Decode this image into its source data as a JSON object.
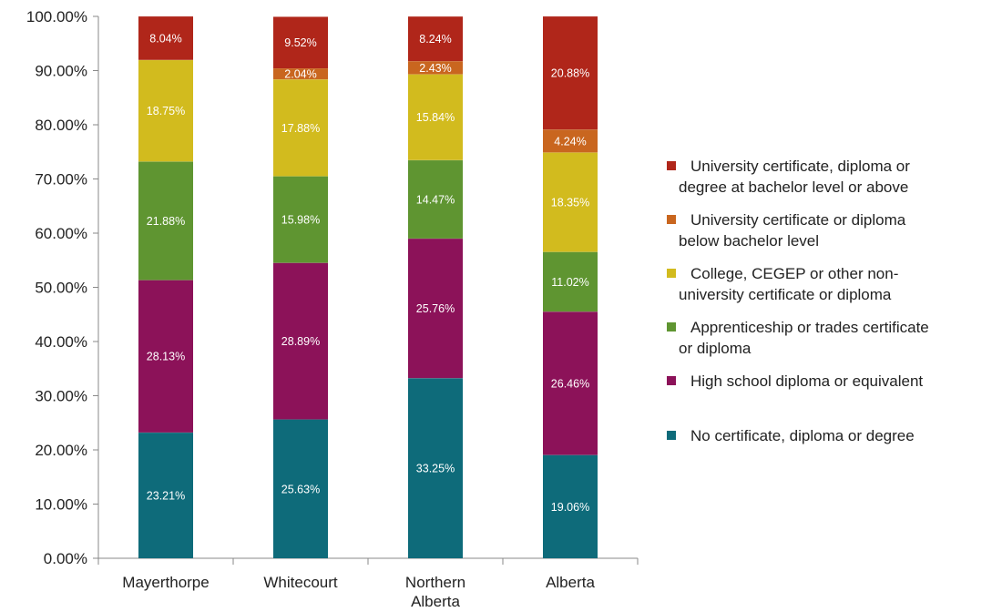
{
  "chart_data": {
    "type": "bar",
    "stacked": true,
    "categories": [
      [
        "Mayerthorpe"
      ],
      [
        "Whitecourt"
      ],
      [
        "Northern",
        "Alberta"
      ],
      [
        "Alberta"
      ]
    ],
    "series": [
      {
        "name": "No certificate, diploma or degree",
        "color": "#0e6b7a",
        "values": [
          23.21,
          25.63,
          33.25,
          19.06
        ],
        "labels": [
          "23.21%",
          "25.63%",
          "33.25%",
          "19.06%"
        ]
      },
      {
        "name": "High school diploma or equivalent",
        "color": "#8c1259",
        "values": [
          28.13,
          28.89,
          25.76,
          26.46
        ],
        "labels": [
          "28.13%",
          "28.89%",
          "25.76%",
          "26.46%"
        ]
      },
      {
        "name": "Apprenticeship or trades certificate or diploma",
        "color": "#5f9531",
        "values": [
          21.88,
          15.98,
          14.47,
          11.02
        ],
        "labels": [
          "21.88%",
          "15.98%",
          "14.47%",
          "11.02%"
        ]
      },
      {
        "name": "College, CEGEP or other non-university certificate or diploma",
        "color": "#d2bb1e",
        "values": [
          18.75,
          17.88,
          15.84,
          18.35
        ],
        "labels": [
          "18.75%",
          "17.88%",
          "15.84%",
          "18.35%"
        ]
      },
      {
        "name": "University certificate or diploma below bachelor level",
        "color": "#c9661f",
        "values": [
          0,
          2.04,
          2.43,
          4.24
        ],
        "labels": [
          "",
          "2.04%",
          "2.43%",
          "4.24%"
        ]
      },
      {
        "name": "University certificate, diploma or degree at bachelor level or above",
        "color": "#b0261a",
        "values": [
          8.04,
          9.52,
          8.24,
          20.88
        ],
        "labels": [
          "8.04%",
          "9.52%",
          "8.24%",
          "20.88%"
        ]
      }
    ],
    "legend": {
      "position": "right",
      "entries": [
        {
          "lines": [
            "University certificate, diploma or",
            "degree at bachelor level or above"
          ],
          "color": "#b0261a"
        },
        {
          "lines": [
            "University certificate or diploma",
            "below bachelor level"
          ],
          "color": "#c9661f"
        },
        {
          "lines": [
            "College, CEGEP or other non-",
            "university certificate or diploma"
          ],
          "color": "#d2bb1e"
        },
        {
          "lines": [
            "Apprenticeship or trades certificate",
            "or diploma"
          ],
          "color": "#5f9531"
        },
        {
          "lines": [
            "High school diploma or equivalent"
          ],
          "color": "#8c1259"
        },
        {
          "lines": [
            "No certificate, diploma or degree"
          ],
          "color": "#0e6b7a"
        }
      ]
    },
    "y_ticks": [
      "0.00%",
      "10.00%",
      "20.00%",
      "30.00%",
      "40.00%",
      "50.00%",
      "60.00%",
      "70.00%",
      "80.00%",
      "90.00%",
      "100.00%"
    ],
    "ylim": [
      0,
      100
    ],
    "grid": false,
    "title": "",
    "xlabel": "",
    "ylabel": ""
  }
}
